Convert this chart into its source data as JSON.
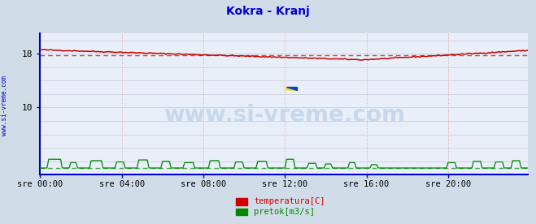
{
  "title": "Kokra - Kranj",
  "title_color": "#0000cc",
  "bg_color": "#d0dce8",
  "plot_bg_color": "#e8eff8",
  "grid_color_h": "#c8c8d8",
  "grid_color_v_pink": "#e8b8b8",
  "border_color": "#0000cc",
  "watermark_text": "www.si-vreme.com",
  "watermark_color": "#c8d8ec",
  "side_text": "www.si-vreme.com",
  "side_color": "#0000cc",
  "ylim": [
    0,
    21
  ],
  "yticks": [
    10,
    18
  ],
  "xlim": [
    0,
    287
  ],
  "xtick_labels": [
    "sre 00:00",
    "sre 04:00",
    "sre 08:00",
    "sre 12:00",
    "sre 16:00",
    "sre 20:00"
  ],
  "xtick_positions": [
    0,
    48,
    96,
    144,
    192,
    240
  ],
  "temp_color": "#cc0000",
  "flow_color": "#008800",
  "avg_temp": 17.75,
  "avg_flow": 1.0,
  "legend_temp_label": "temperatura[C]",
  "legend_flow_label": "pretok[m3/s]"
}
